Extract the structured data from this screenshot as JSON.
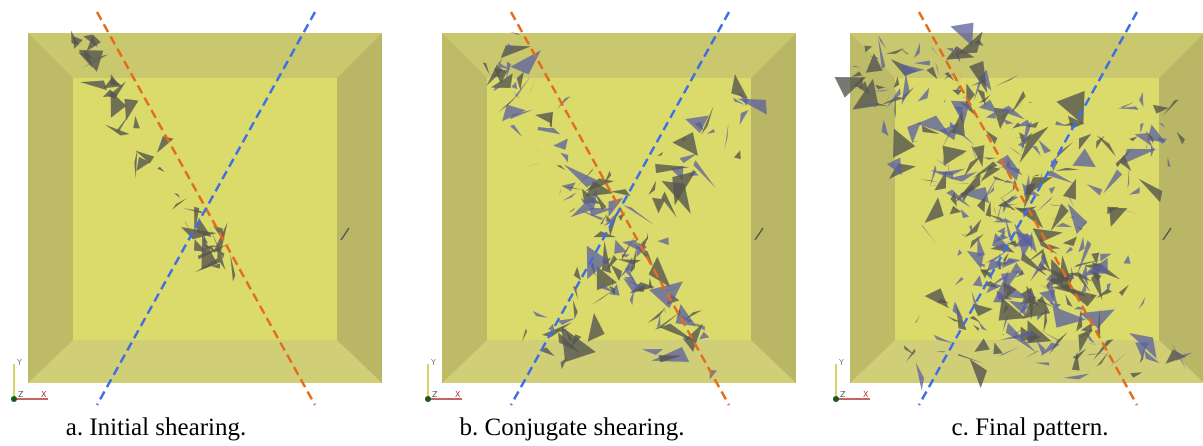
{
  "panels": [
    {
      "caption": "a. Initial shearing.",
      "axes": {
        "y": "Y",
        "z": "Z",
        "x": "X"
      }
    },
    {
      "caption": "b. Conjugate shearing.",
      "axes": {
        "y": "Y",
        "z": "Z",
        "x": "X"
      }
    },
    {
      "caption": "c. Final pattern.",
      "axes": {
        "y": "Y",
        "z": "Z",
        "x": "X"
      }
    }
  ]
}
